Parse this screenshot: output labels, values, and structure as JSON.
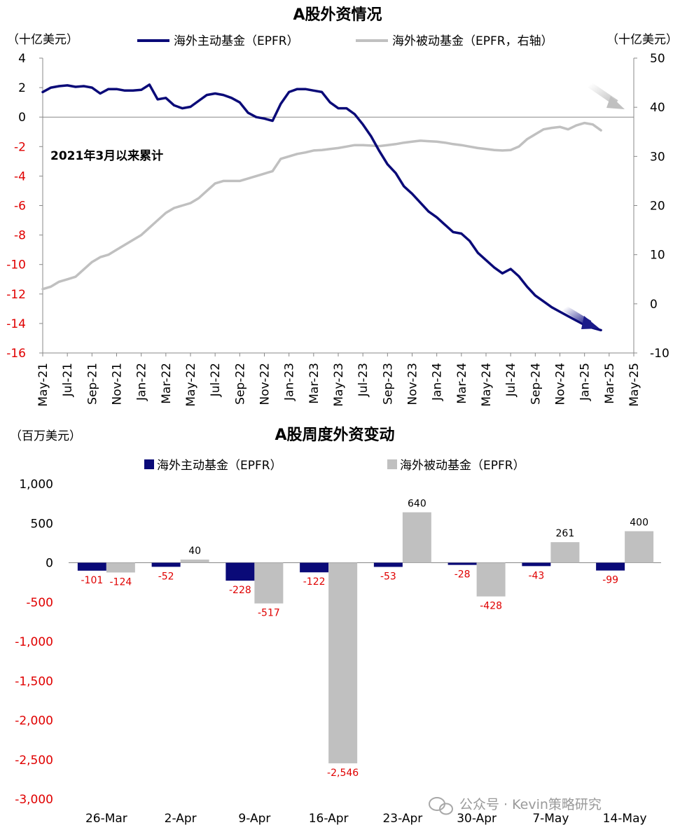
{
  "chart_data": [
    {
      "type": "line",
      "title": "A股外资情况",
      "left_unit": "（十亿美元）",
      "right_unit": "（十亿美元）",
      "annotation": "2021年3月以来累计",
      "legend_position": "top",
      "y_left_lim": [
        -16,
        4
      ],
      "y_left_ticks": [
        "4",
        "2",
        "0",
        "-2",
        "-4",
        "-6",
        "-8",
        "-10",
        "-12",
        "-14",
        "-16"
      ],
      "y_right_lim": [
        -10,
        50
      ],
      "y_right_ticks": [
        "50",
        "40",
        "30",
        "20",
        "10",
        "0",
        "-10"
      ],
      "x_ticks": [
        "May-21",
        "Jul-21",
        "Sep-21",
        "Nov-21",
        "Jan-22",
        "Mar-22",
        "May-22",
        "Jul-22",
        "Sep-22",
        "Nov-22",
        "Jan-23",
        "Mar-23",
        "May-23",
        "Jul-23",
        "Sep-23",
        "Nov-23",
        "Jan-24",
        "Mar-24",
        "May-24",
        "Jul-24",
        "Sep-24",
        "Nov-24",
        "Jan-25",
        "Mar-25",
        "May-25"
      ],
      "grid": false,
      "colors": {
        "active": "#0a0a78",
        "passive": "#c0c0c0",
        "negative_tick": "#e00000"
      },
      "series": [
        {
          "name": "海外主动基金（EPFR）",
          "axis": "left",
          "points": [
            [
              0,
              1.7
            ],
            [
              0.5,
              2.0
            ],
            [
              1,
              2.1
            ],
            [
              1.5,
              2.15
            ],
            [
              2,
              2.05
            ],
            [
              2.5,
              2.1
            ],
            [
              3,
              2.0
            ],
            [
              3.5,
              1.6
            ],
            [
              4,
              1.9
            ],
            [
              4.5,
              1.9
            ],
            [
              5,
              1.8
            ],
            [
              5.5,
              1.8
            ],
            [
              6,
              1.85
            ],
            [
              6.5,
              2.2
            ],
            [
              7,
              1.2
            ],
            [
              7.5,
              1.3
            ],
            [
              8,
              0.8
            ],
            [
              8.5,
              0.6
            ],
            [
              9,
              0.7
            ],
            [
              9.5,
              1.1
            ],
            [
              10,
              1.5
            ],
            [
              10.5,
              1.6
            ],
            [
              11,
              1.5
            ],
            [
              11.5,
              1.3
            ],
            [
              12,
              1.0
            ],
            [
              12.5,
              0.3
            ],
            [
              13,
              0.0
            ],
            [
              13.5,
              -0.1
            ],
            [
              14,
              -0.25
            ],
            [
              14.5,
              0.9
            ],
            [
              15,
              1.7
            ],
            [
              15.5,
              1.9
            ],
            [
              16,
              1.9
            ],
            [
              16.5,
              1.8
            ],
            [
              17,
              1.7
            ],
            [
              17.5,
              1.0
            ],
            [
              18,
              0.6
            ],
            [
              18.5,
              0.6
            ],
            [
              19,
              0.2
            ],
            [
              19.5,
              -0.5
            ],
            [
              20,
              -1.3
            ],
            [
              20.5,
              -2.3
            ],
            [
              21,
              -3.2
            ],
            [
              21.5,
              -3.8
            ],
            [
              22,
              -4.7
            ],
            [
              22.5,
              -5.2
            ],
            [
              23,
              -5.8
            ],
            [
              23.5,
              -6.4
            ],
            [
              24,
              -6.8
            ],
            [
              24.5,
              -7.3
            ],
            [
              25,
              -7.8
            ],
            [
              25.5,
              -7.9
            ],
            [
              26,
              -8.4
            ],
            [
              26.5,
              -9.2
            ],
            [
              27,
              -9.7
            ],
            [
              27.5,
              -10.2
            ],
            [
              28,
              -10.6
            ],
            [
              28.5,
              -10.3
            ],
            [
              29,
              -10.8
            ],
            [
              29.5,
              -11.5
            ],
            [
              30,
              -12.1
            ],
            [
              30.5,
              -12.5
            ],
            [
              31,
              -12.9
            ],
            [
              31.5,
              -13.2
            ],
            [
              32,
              -13.5
            ],
            [
              32.5,
              -13.8
            ],
            [
              33,
              -14.1
            ],
            [
              33.5,
              -14.3
            ],
            [
              34,
              -14.45
            ]
          ]
        },
        {
          "name": "海外被动基金（EPFR，右轴）",
          "axis": "right",
          "points": [
            [
              0,
              3
            ],
            [
              0.5,
              3.5
            ],
            [
              1,
              4.5
            ],
            [
              1.5,
              5
            ],
            [
              2,
              5.5
            ],
            [
              2.5,
              7
            ],
            [
              3,
              8.5
            ],
            [
              3.5,
              9.5
            ],
            [
              4,
              10
            ],
            [
              4.5,
              11
            ],
            [
              5,
              12
            ],
            [
              5.5,
              13
            ],
            [
              6,
              14
            ],
            [
              6.5,
              15.5
            ],
            [
              7,
              17
            ],
            [
              7.5,
              18.5
            ],
            [
              8,
              19.5
            ],
            [
              8.5,
              20
            ],
            [
              9,
              20.5
            ],
            [
              9.5,
              21.5
            ],
            [
              10,
              23
            ],
            [
              10.5,
              24.5
            ],
            [
              11,
              25
            ],
            [
              11.5,
              25
            ],
            [
              12,
              25
            ],
            [
              12.5,
              25.5
            ],
            [
              13,
              26
            ],
            [
              13.5,
              26.5
            ],
            [
              14,
              27
            ],
            [
              14.5,
              29.5
            ],
            [
              15,
              30
            ],
            [
              15.5,
              30.5
            ],
            [
              16,
              30.8
            ],
            [
              16.5,
              31.2
            ],
            [
              17,
              31.3
            ],
            [
              17.5,
              31.5
            ],
            [
              18,
              31.7
            ],
            [
              18.5,
              32
            ],
            [
              19,
              32.3
            ],
            [
              19.5,
              32.3
            ],
            [
              20,
              32.2
            ],
            [
              20.5,
              32.1
            ],
            [
              21,
              32.3
            ],
            [
              21.5,
              32.5
            ],
            [
              22,
              32.8
            ],
            [
              22.5,
              33
            ],
            [
              23,
              33.2
            ],
            [
              23.5,
              33.1
            ],
            [
              24,
              33
            ],
            [
              24.5,
              32.8
            ],
            [
              25,
              32.5
            ],
            [
              25.5,
              32.3
            ],
            [
              26,
              32
            ],
            [
              26.5,
              31.7
            ],
            [
              27,
              31.5
            ],
            [
              27.5,
              31.3
            ],
            [
              28,
              31.2
            ],
            [
              28.5,
              31.3
            ],
            [
              29,
              32
            ],
            [
              29.5,
              33.5
            ],
            [
              30,
              34.5
            ],
            [
              30.5,
              35.5
            ],
            [
              31,
              35.8
            ],
            [
              31.5,
              36
            ],
            [
              32,
              35.5
            ],
            [
              32.5,
              36.3
            ],
            [
              33,
              36.8
            ],
            [
              33.5,
              36.5
            ],
            [
              34,
              35.3
            ]
          ]
        }
      ]
    },
    {
      "type": "bar",
      "title": "A股周度外资变动",
      "unit": "（百万美元）",
      "legend_position": "top",
      "ylim": [
        -3000,
        1000
      ],
      "y_ticks": [
        "1,000",
        "500",
        "0",
        "-500",
        "-1,000",
        "-1,500",
        "-2,000",
        "-2,500",
        "-3,000"
      ],
      "grid": false,
      "categories": [
        "26-Mar",
        "2-Apr",
        "9-Apr",
        "16-Apr",
        "23-Apr",
        "30-Apr",
        "7-May",
        "14-May"
      ],
      "colors": {
        "active": "#0a0a78",
        "passive": "#c0c0c0"
      },
      "series": [
        {
          "name": "海外主动基金（EPFR）",
          "values": [
            -101,
            -52,
            -228,
            -122,
            -53,
            -28,
            -43,
            -99
          ],
          "labels": [
            "-101",
            "-52",
            "-228",
            "-122",
            "-53",
            "-28",
            "-43",
            "-99"
          ]
        },
        {
          "name": "海外被动基金（EPFR）",
          "values": [
            -124,
            40,
            -517,
            -2546,
            640,
            -428,
            261,
            400
          ],
          "labels": [
            "-124",
            "40",
            "-517",
            "-2,546",
            "640",
            "-428",
            "261",
            "400"
          ]
        }
      ]
    }
  ],
  "watermark": "公众号 · Kevin策略研究",
  "watermark_icon": "wechat-icon"
}
